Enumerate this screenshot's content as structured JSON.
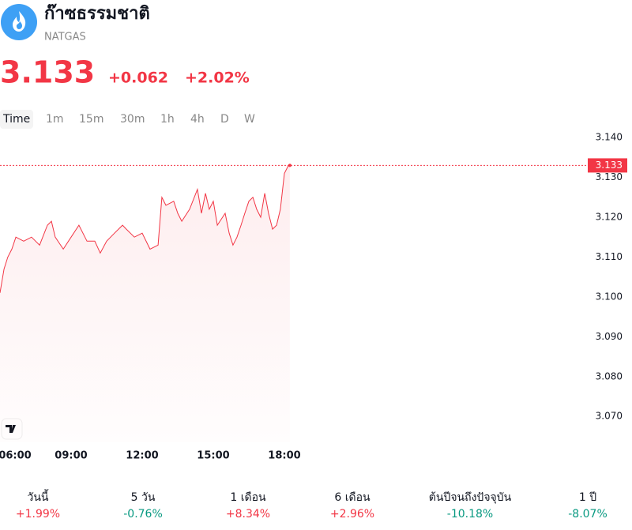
{
  "header": {
    "title": "ก๊าซธรรมชาติ",
    "symbol": "NATGAS",
    "price": "3.133",
    "change": "+0.062",
    "change_percent": "+2.02%"
  },
  "tabs": [
    "Time",
    "1m",
    "15m",
    "30m",
    "1h",
    "4h",
    "D",
    "W"
  ],
  "chart_data": {
    "type": "line",
    "color": "#f23645",
    "x": [
      6,
      6.17,
      6.33,
      6.5,
      6.67,
      7,
      7.33,
      7.67,
      8,
      8.17,
      8.33,
      8.67,
      9,
      9.33,
      9.67,
      10,
      10.23,
      10.5,
      10.83,
      11.17,
      11.33,
      11.67,
      12,
      12.33,
      12.67,
      12.83,
      13,
      13.33,
      13.5,
      13.67,
      14,
      14.33,
      14.5,
      14.67,
      14.83,
      15,
      15.17,
      15.5,
      15.67,
      15.83,
      16,
      16.17,
      16.33,
      16.5,
      16.67,
      16.83,
      17,
      17.17,
      17.33,
      17.5,
      17.67,
      17.83,
      18,
      18.17,
      18.23
    ],
    "values": [
      3.101,
      3.107,
      3.11,
      3.112,
      3.115,
      3.114,
      3.115,
      3.113,
      3.118,
      3.119,
      3.115,
      3.112,
      3.115,
      3.118,
      3.114,
      3.114,
      3.111,
      3.114,
      3.116,
      3.118,
      3.117,
      3.115,
      3.116,
      3.112,
      3.113,
      3.125,
      3.123,
      3.124,
      3.121,
      3.119,
      3.122,
      3.127,
      3.121,
      3.126,
      3.122,
      3.124,
      3.118,
      3.121,
      3.116,
      3.113,
      3.115,
      3.118,
      3.121,
      3.124,
      3.125,
      3.122,
      3.12,
      3.126,
      3.121,
      3.117,
      3.118,
      3.122,
      3.131,
      3.133,
      3.133
    ],
    "last_value": 3.133,
    "xlim": [
      6,
      30.6
    ],
    "xticks": [
      {
        "value": 6,
        "label": "06:00"
      },
      {
        "value": 9,
        "label": "09:00"
      },
      {
        "value": 12,
        "label": "12:00"
      },
      {
        "value": 15,
        "label": "15:00"
      },
      {
        "value": 18,
        "label": "18:00"
      }
    ],
    "ylim": [
      3.0635,
      3.1428
    ],
    "yticks": [
      {
        "value": 3.07,
        "label": "3.070"
      },
      {
        "value": 3.08,
        "label": "3.080"
      },
      {
        "value": 3.09,
        "label": "3.090"
      },
      {
        "value": 3.1,
        "label": "3.100"
      },
      {
        "value": 3.11,
        "label": "3.110"
      },
      {
        "value": 3.12,
        "label": "3.120"
      },
      {
        "value": 3.13,
        "label": "3.130"
      },
      {
        "value": 3.14,
        "label": "3.140"
      }
    ]
  },
  "performance": [
    {
      "label": "วันนี้",
      "value": "+1.99%",
      "color": "#f23645"
    },
    {
      "label": "5 วัน",
      "value": "-0.76%",
      "color": "#089981"
    },
    {
      "label": "1 เดือน",
      "value": "+8.34%",
      "color": "#f23645"
    },
    {
      "label": "6 เดือน",
      "value": "+2.96%",
      "color": "#f23645"
    },
    {
      "label": "ต้นปีจนถึงปัจจุบัน",
      "value": "-10.18%",
      "color": "#089981"
    },
    {
      "label": "1 ปี",
      "value": "-8.07%",
      "color": "#089981"
    }
  ]
}
